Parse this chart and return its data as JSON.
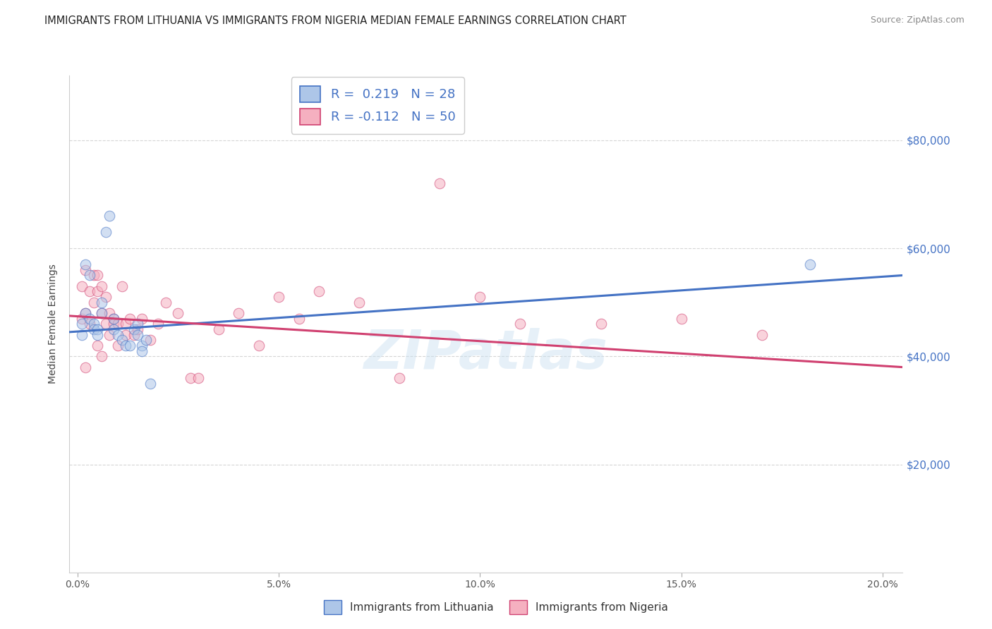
{
  "title": "IMMIGRANTS FROM LITHUANIA VS IMMIGRANTS FROM NIGERIA MEDIAN FEMALE EARNINGS CORRELATION CHART",
  "source": "Source: ZipAtlas.com",
  "ylabel": "Median Female Earnings",
  "xlabel_ticks": [
    "0.0%",
    "5.0%",
    "10.0%",
    "15.0%",
    "20.0%"
  ],
  "xlabel_vals": [
    0.0,
    0.05,
    0.1,
    0.15,
    0.2
  ],
  "ytick_labels": [
    "$20,000",
    "$40,000",
    "$60,000",
    "$80,000"
  ],
  "ytick_vals": [
    20000,
    40000,
    60000,
    80000
  ],
  "ylim": [
    0,
    92000
  ],
  "xlim": [
    -0.002,
    0.205
  ],
  "watermark": "ZIPatlas",
  "legend_1_label": "R =  0.219   N = 28",
  "legend_2_label": "R = -0.112   N = 50",
  "color_lithuania": "#adc6e8",
  "color_nigeria": "#f5b0c0",
  "line_color_lithuania": "#4472c4",
  "line_color_nigeria": "#d04070",
  "lithuania_x": [
    0.001,
    0.001,
    0.002,
    0.002,
    0.003,
    0.003,
    0.004,
    0.004,
    0.005,
    0.005,
    0.006,
    0.006,
    0.007,
    0.008,
    0.009,
    0.009,
    0.01,
    0.011,
    0.012,
    0.013,
    0.014,
    0.015,
    0.015,
    0.016,
    0.016,
    0.017,
    0.018,
    0.182
  ],
  "lithuania_y": [
    46000,
    44000,
    57000,
    48000,
    55000,
    47000,
    46000,
    45000,
    45000,
    44000,
    48000,
    50000,
    63000,
    66000,
    47000,
    45000,
    44000,
    43000,
    42000,
    42000,
    45000,
    46000,
    44000,
    42000,
    41000,
    43000,
    35000,
    57000
  ],
  "nigeria_x": [
    0.001,
    0.001,
    0.002,
    0.002,
    0.002,
    0.003,
    0.003,
    0.004,
    0.004,
    0.005,
    0.005,
    0.005,
    0.006,
    0.006,
    0.006,
    0.007,
    0.007,
    0.008,
    0.008,
    0.009,
    0.009,
    0.01,
    0.01,
    0.011,
    0.012,
    0.012,
    0.013,
    0.014,
    0.015,
    0.016,
    0.018,
    0.02,
    0.022,
    0.025,
    0.028,
    0.03,
    0.035,
    0.04,
    0.045,
    0.05,
    0.055,
    0.06,
    0.07,
    0.08,
    0.09,
    0.1,
    0.11,
    0.13,
    0.15,
    0.17
  ],
  "nigeria_y": [
    53000,
    47000,
    56000,
    48000,
    38000,
    52000,
    46000,
    55000,
    50000,
    55000,
    52000,
    42000,
    53000,
    48000,
    40000,
    51000,
    46000,
    48000,
    44000,
    47000,
    46000,
    46000,
    42000,
    53000,
    46000,
    44000,
    47000,
    44000,
    45000,
    47000,
    43000,
    46000,
    50000,
    48000,
    36000,
    36000,
    45000,
    48000,
    42000,
    51000,
    47000,
    52000,
    50000,
    36000,
    72000,
    51000,
    46000,
    46000,
    47000,
    44000
  ],
  "title_fontsize": 10.5,
  "source_fontsize": 9,
  "axis_fontsize": 10,
  "tick_fontsize": 10,
  "legend_fontsize": 13,
  "scatter_size": 110,
  "scatter_alpha": 0.55,
  "grid_color": "#cccccc",
  "grid_linestyle": "--",
  "grid_alpha": 0.8,
  "background_color": "#ffffff"
}
